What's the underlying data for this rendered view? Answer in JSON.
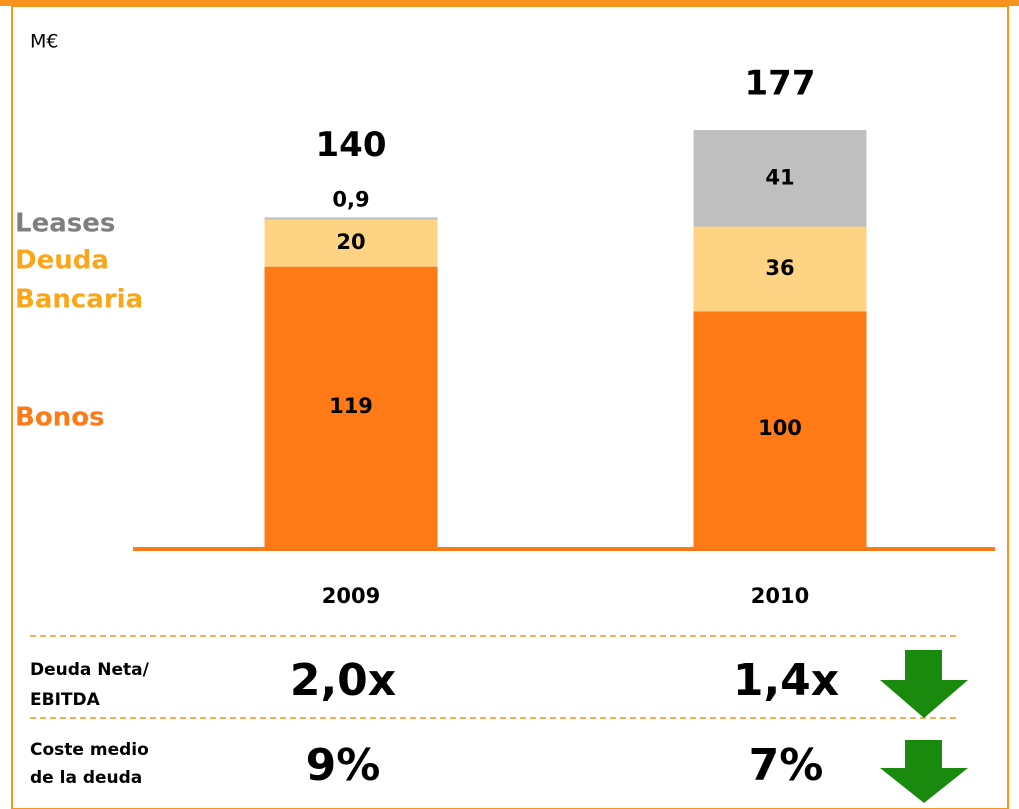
{
  "chart_data": {
    "type": "stacked_bar",
    "unit": "M€",
    "categories": [
      "2009",
      "2010"
    ],
    "series": [
      {
        "name": "Bonos",
        "color": "#fd7a17",
        "text_color": "#fd7a17",
        "values": [
          119,
          100
        ]
      },
      {
        "name": "Deuda Bancaria",
        "color": "#fed383",
        "text_color": "#f9a61a",
        "values": [
          20,
          36
        ]
      },
      {
        "name": "Leases",
        "color": "#bfbfbf",
        "text_color": "#7f7f7f",
        "values": [
          0.9,
          41
        ],
        "value_labels": [
          "0,9",
          "41"
        ]
      }
    ],
    "totals": [
      140,
      177
    ],
    "legend_lines": [
      [
        "Bonos"
      ],
      [
        "Deuda",
        "Bancaria"
      ],
      [
        "Leases"
      ]
    ]
  },
  "metrics": {
    "rows": [
      {
        "label": [
          "Deuda Neta/",
          "EBITDA"
        ],
        "values": [
          "2,0x",
          "1,4x"
        ]
      },
      {
        "label": [
          "Coste medio",
          "de la deuda"
        ],
        "values": [
          "9%",
          "7%"
        ]
      }
    ]
  }
}
